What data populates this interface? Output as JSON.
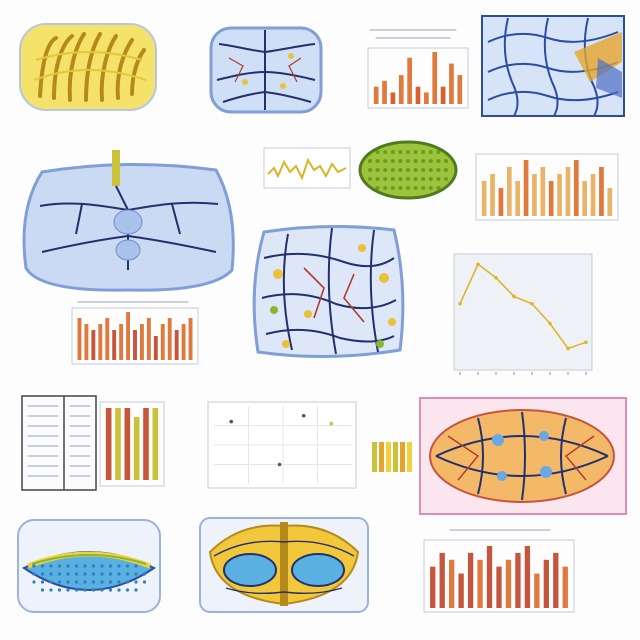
{
  "captions": {
    "cell_a_bottom": "",
    "cell_b_right": "",
    "scatter_title": "",
    "line_title": ""
  },
  "palette": {
    "membrane_blue": "#6d8ed0",
    "membrane_fill": "#c9d8f2",
    "vein_navy": "#23306e",
    "vein_red": "#b3392a",
    "yellow": "#f2d23c",
    "gold": "#e5a52a",
    "green": "#8ab52f",
    "bar_orange": "#e07a3c",
    "bar_tan": "#e8b46a",
    "bar_red": "#c6553d",
    "pink_frame": "#f3c6de"
  },
  "panels": [
    {
      "name": "yellow-leaf-cell",
      "kind": "illustration"
    },
    {
      "name": "blue-vein-cell",
      "kind": "illustration"
    },
    {
      "name": "orange-bar-chart-top",
      "kind": "chart"
    },
    {
      "name": "blue-mesh-cell",
      "kind": "illustration"
    },
    {
      "name": "large-blue-vein-cell",
      "kind": "illustration"
    },
    {
      "name": "yellow-waveform-strip",
      "kind": "chart"
    },
    {
      "name": "green-dotted-oval",
      "kind": "illustration"
    },
    {
      "name": "tan-bar-chart-right",
      "kind": "chart"
    },
    {
      "name": "center-vein-cell",
      "kind": "illustration"
    },
    {
      "name": "line-chart-right",
      "kind": "chart"
    },
    {
      "name": "orange-bar-chart-left",
      "kind": "chart"
    },
    {
      "name": "table-and-bars",
      "kind": "chart"
    },
    {
      "name": "scatter-plot",
      "kind": "chart"
    },
    {
      "name": "pink-vein-cell",
      "kind": "illustration"
    },
    {
      "name": "cyan-eye-cell",
      "kind": "illustration"
    },
    {
      "name": "butterfly-cell",
      "kind": "illustration"
    },
    {
      "name": "red-bar-chart-bottom",
      "kind": "chart"
    }
  ],
  "chart_data": [
    {
      "type": "bar",
      "id": "orange-bar-chart-top",
      "values": [
        3,
        4,
        2,
        5,
        8,
        3,
        2,
        9,
        3,
        7,
        5
      ]
    },
    {
      "type": "bar",
      "id": "tan-bar-chart-right",
      "values": [
        5,
        6,
        4,
        7,
        5,
        8,
        6,
        7,
        5,
        6,
        7,
        8,
        5,
        6,
        7,
        4
      ]
    },
    {
      "type": "line",
      "id": "line-chart-right",
      "x": [
        0,
        1,
        2,
        3,
        4,
        5,
        6,
        7
      ],
      "values": [
        5.6,
        9.4,
        8.1,
        6.3,
        5.6,
        3.7,
        1.3,
        1.9
      ]
    },
    {
      "type": "bar",
      "id": "orange-bar-chart-left",
      "values": [
        7,
        6,
        5,
        6,
        7,
        5,
        6,
        8,
        5,
        6,
        7,
        4,
        6,
        7,
        5,
        6,
        7
      ]
    },
    {
      "type": "bar",
      "id": "table-and-bars",
      "values": [
        8,
        8,
        8,
        7,
        8,
        8
      ]
    },
    {
      "type": "scatter",
      "id": "scatter-plot",
      "points": [
        [
          0.5,
          3.2
        ],
        [
          2.6,
          3.5
        ],
        [
          3.4,
          3.1
        ],
        [
          1.9,
          1.0
        ]
      ]
    },
    {
      "type": "bar",
      "id": "red-bar-chart-bottom",
      "values": [
        6,
        8,
        7,
        5,
        8,
        7,
        9,
        6,
        7,
        8,
        9,
        5,
        7,
        8,
        6
      ]
    }
  ]
}
